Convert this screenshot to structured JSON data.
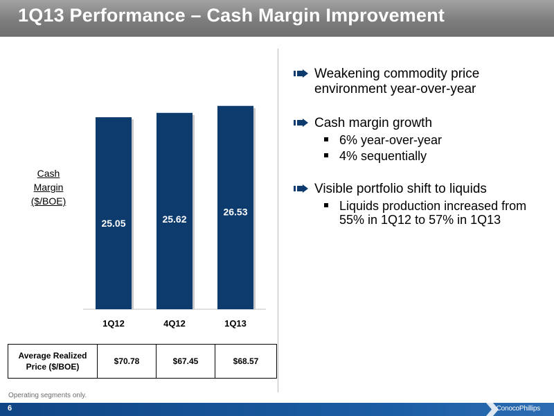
{
  "header": {
    "title": "1Q13 Performance – Cash Margin Improvement"
  },
  "chart_data": {
    "type": "bar",
    "ylabel": [
      "Cash",
      "Margin",
      "($/BOE)"
    ],
    "categories": [
      "1Q12",
      "4Q12",
      "1Q13"
    ],
    "values": [
      25.05,
      25.62,
      26.53
    ],
    "value_labels": [
      "25.05",
      "25.62",
      "26.53"
    ],
    "ylim": [
      0,
      27.5
    ],
    "grid": false,
    "bar_color": "#0d3b6e"
  },
  "price_table": {
    "header": "Average Realized Price ($/BOE)",
    "values": [
      "$70.78",
      "$67.45",
      "$68.57"
    ]
  },
  "footnote": "Operating segments only.",
  "footer": {
    "page": "6",
    "logo": "ConocoPhillips",
    "color": "#1b5da4"
  },
  "bullets": [
    {
      "text": "Weakening commodity price environment year-over-year",
      "sub": []
    },
    {
      "text": "Cash margin growth",
      "sub": [
        "6% year-over-year",
        "4% sequentially"
      ]
    },
    {
      "text": "Visible portfolio shift to liquids",
      "sub": [
        "Liquids production increased from 55% in 1Q12 to 57% in 1Q13"
      ]
    }
  ]
}
